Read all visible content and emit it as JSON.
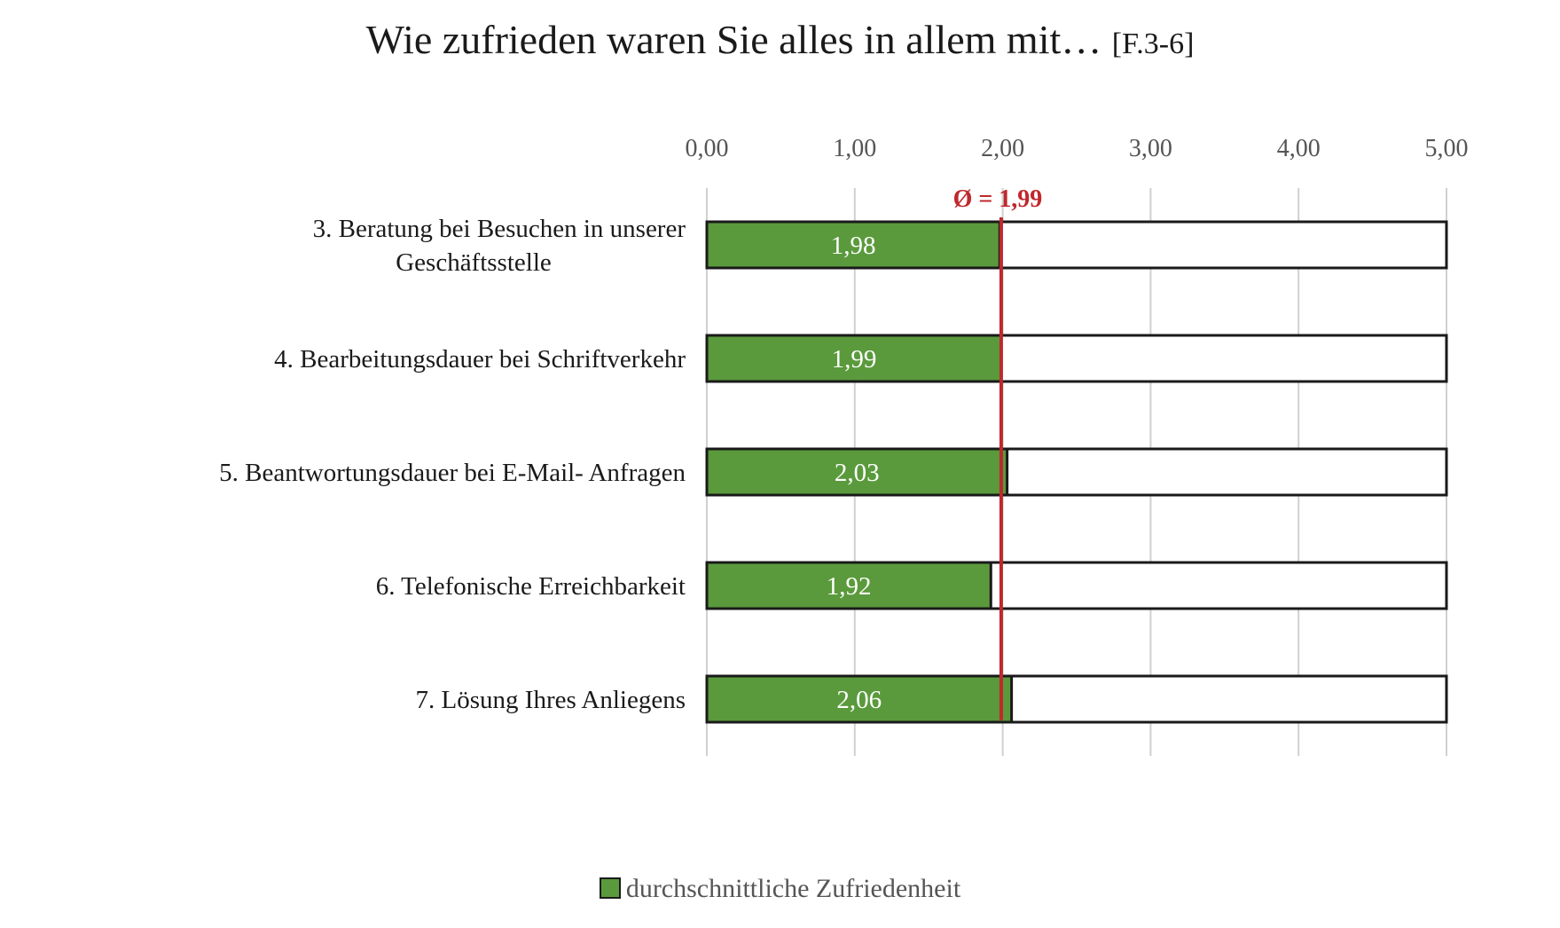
{
  "chart_data": {
    "type": "bar",
    "orientation": "horizontal",
    "title": "Wie zufrieden waren Sie alles in allem mit…",
    "subtitle": "[F.3-6]",
    "categories": [
      [
        "3. Beratung bei Besuchen in unserer",
        "Geschäftsstelle"
      ],
      [
        "4. Bearbeitungsdauer bei Schriftverkehr"
      ],
      [
        "5. Beantwortungsdauer bei E-Mail- Anfragen"
      ],
      [
        "6. Telefonische Erreichbarkeit"
      ],
      [
        "7. Lösung Ihres Anliegens"
      ]
    ],
    "series": [
      {
        "name": "durchschnittliche Zufriedenheit",
        "values": [
          1.98,
          1.99,
          2.03,
          1.92,
          2.06
        ],
        "labels": [
          "1,98",
          "1,99",
          "2,03",
          "1,92",
          "2,06"
        ],
        "color": "#5a9a3c"
      }
    ],
    "xlim": [
      0,
      5
    ],
    "x_ticks": [
      "0,00",
      "1,00",
      "2,00",
      "3,00",
      "4,00",
      "5,00"
    ],
    "x_axis_position": "top",
    "grid": true,
    "reference_line": {
      "value": 1.99,
      "label": "Ø = 1,99",
      "color": "#c0282d"
    },
    "legend": {
      "position": "bottom",
      "entries": [
        "durchschnittliche Zufriedenheit"
      ]
    }
  }
}
